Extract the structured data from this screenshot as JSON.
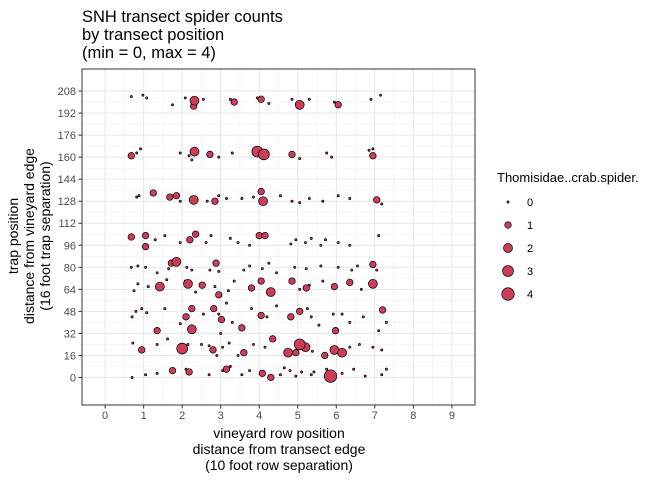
{
  "chart_data": {
    "type": "scatter",
    "title_lines": [
      "SNH transect spider counts",
      "by transect position",
      "(min = 0, max = 4)"
    ],
    "xlabel_lines": [
      "vineyard row position",
      "distance from transect edge",
      "(10 foot row separation)"
    ],
    "ylabel_lines": [
      "trap position",
      "distance from vineyard edge",
      "(16 foot trap separation)"
    ],
    "x_ticks": [
      "0",
      "1",
      "2",
      "3",
      "4",
      "5",
      "6",
      "7",
      "8",
      "9"
    ],
    "x_tick_values": [
      0,
      1,
      2,
      3,
      4,
      5,
      6,
      7,
      8,
      9
    ],
    "y_ticks": [
      "0",
      "16",
      "32",
      "48",
      "64",
      "80",
      "96",
      "112",
      "128",
      "144",
      "160",
      "176",
      "192",
      "208"
    ],
    "y_tick_values": [
      0,
      16,
      32,
      48,
      64,
      80,
      96,
      112,
      128,
      144,
      160,
      176,
      192,
      208
    ],
    "xlim": [
      -0.6,
      9.6
    ],
    "ylim": [
      -20,
      224
    ],
    "grid": true,
    "legend": {
      "title": "Thomisidae..crab.spider.",
      "position": "right",
      "entries": [
        {
          "label": "0",
          "value": 0
        },
        {
          "label": "1",
          "value": 1
        },
        {
          "label": "2",
          "value": 2
        },
        {
          "label": "3",
          "value": 3
        },
        {
          "label": "4",
          "value": 4
        }
      ]
    },
    "point_color": "#cc3d5a",
    "point_stroke": "#000000",
    "points": [
      [
        0.68,
        204,
        0
      ],
      [
        0.98,
        205,
        0
      ],
      [
        1.08,
        203,
        0
      ],
      [
        1.75,
        198,
        0
      ],
      [
        2.08,
        203,
        0
      ],
      [
        2.32,
        201,
        2
      ],
      [
        2.3,
        197,
        1
      ],
      [
        2.55,
        202,
        0
      ],
      [
        3.25,
        202,
        0
      ],
      [
        3.35,
        200,
        1
      ],
      [
        3.95,
        203,
        0
      ],
      [
        4.05,
        202,
        1
      ],
      [
        4.25,
        199,
        0
      ],
      [
        4.85,
        202,
        0
      ],
      [
        5.05,
        198,
        2
      ],
      [
        5.3,
        202,
        0
      ],
      [
        5.95,
        200,
        0
      ],
      [
        6.05,
        198,
        1
      ],
      [
        6.9,
        202,
        0
      ],
      [
        7.15,
        205,
        0
      ],
      [
        0.68,
        161,
        1
      ],
      [
        0.82,
        163,
        0
      ],
      [
        0.92,
        166,
        0
      ],
      [
        1.95,
        163,
        0
      ],
      [
        2.18,
        161,
        0
      ],
      [
        2.32,
        164,
        2
      ],
      [
        2.25,
        158,
        0
      ],
      [
        2.72,
        162,
        1
      ],
      [
        2.95,
        160,
        0
      ],
      [
        3.3,
        163,
        0
      ],
      [
        3.95,
        164,
        3
      ],
      [
        4.12,
        162,
        3
      ],
      [
        4.85,
        162,
        1
      ],
      [
        5.05,
        159,
        0
      ],
      [
        5.75,
        163,
        0
      ],
      [
        5.88,
        160,
        0
      ],
      [
        6.85,
        165,
        0
      ],
      [
        6.95,
        161,
        1
      ],
      [
        6.95,
        166,
        0
      ],
      [
        0.82,
        131,
        0
      ],
      [
        0.88,
        132,
        0
      ],
      [
        1.25,
        134,
        1
      ],
      [
        1.68,
        131,
        1
      ],
      [
        1.85,
        132,
        1
      ],
      [
        1.95,
        128,
        0
      ],
      [
        2.3,
        129,
        2
      ],
      [
        2.65,
        128,
        0
      ],
      [
        2.85,
        128,
        1
      ],
      [
        2.95,
        132,
        0
      ],
      [
        3.15,
        130,
        0
      ],
      [
        3.55,
        130,
        0
      ],
      [
        3.85,
        131,
        0
      ],
      [
        4.05,
        135,
        1
      ],
      [
        4.1,
        128,
        2
      ],
      [
        4.55,
        132,
        0
      ],
      [
        4.85,
        128,
        0
      ],
      [
        5.05,
        127,
        0
      ],
      [
        5.3,
        130,
        0
      ],
      [
        5.65,
        128,
        0
      ],
      [
        6.05,
        132,
        0
      ],
      [
        6.35,
        130,
        0
      ],
      [
        7.05,
        129,
        1
      ],
      [
        7.18,
        126,
        0
      ],
      [
        0.68,
        102,
        1
      ],
      [
        1.05,
        103,
        1
      ],
      [
        1.05,
        95,
        1
      ],
      [
        1.3,
        100,
        0
      ],
      [
        1.55,
        103,
        0
      ],
      [
        1.95,
        98,
        0
      ],
      [
        2.2,
        100,
        1
      ],
      [
        2.35,
        104,
        1
      ],
      [
        2.62,
        98,
        0
      ],
      [
        2.75,
        103,
        0
      ],
      [
        3.25,
        101,
        0
      ],
      [
        3.45,
        98,
        0
      ],
      [
        3.75,
        96,
        0
      ],
      [
        4.0,
        103,
        1
      ],
      [
        4.15,
        103,
        1
      ],
      [
        4.82,
        97,
        0
      ],
      [
        4.95,
        100,
        0
      ],
      [
        5.2,
        98,
        0
      ],
      [
        5.35,
        101,
        0
      ],
      [
        5.6,
        96,
        0
      ],
      [
        5.72,
        100,
        0
      ],
      [
        6.05,
        98,
        0
      ],
      [
        6.35,
        96,
        0
      ],
      [
        7.1,
        103,
        0
      ],
      [
        0.68,
        80,
        0
      ],
      [
        0.85,
        81,
        0
      ],
      [
        1.05,
        80,
        0
      ],
      [
        1.35,
        76,
        0
      ],
      [
        1.65,
        79,
        0
      ],
      [
        1.72,
        83,
        1
      ],
      [
        1.85,
        84,
        2
      ],
      [
        2.12,
        80,
        0
      ],
      [
        2.25,
        78,
        0
      ],
      [
        2.72,
        78,
        0
      ],
      [
        2.88,
        83,
        1
      ],
      [
        2.95,
        77,
        0
      ],
      [
        3.6,
        78,
        0
      ],
      [
        3.75,
        81,
        0
      ],
      [
        4.08,
        79,
        0
      ],
      [
        4.25,
        83,
        0
      ],
      [
        4.45,
        76,
        0
      ],
      [
        4.92,
        80,
        0
      ],
      [
        5.22,
        79,
        0
      ],
      [
        5.6,
        81,
        0
      ],
      [
        6.05,
        80,
        0
      ],
      [
        6.4,
        78,
        0
      ],
      [
        6.55,
        81,
        0
      ],
      [
        6.95,
        82,
        1
      ],
      [
        7.05,
        78,
        0
      ],
      [
        0.75,
        63,
        0
      ],
      [
        0.85,
        68,
        0
      ],
      [
        1.12,
        66,
        0
      ],
      [
        1.42,
        66,
        2
      ],
      [
        1.6,
        71,
        0
      ],
      [
        2.08,
        70,
        0
      ],
      [
        2.15,
        68,
        2
      ],
      [
        2.35,
        62,
        0
      ],
      [
        2.52,
        67,
        1
      ],
      [
        2.85,
        66,
        0
      ],
      [
        2.95,
        60,
        1
      ],
      [
        3.2,
        63,
        0
      ],
      [
        3.35,
        70,
        0
      ],
      [
        3.8,
        65,
        1
      ],
      [
        4.05,
        70,
        1
      ],
      [
        4.3,
        62,
        2
      ],
      [
        4.85,
        70,
        1
      ],
      [
        5.05,
        64,
        0
      ],
      [
        5.22,
        65,
        1
      ],
      [
        5.3,
        67,
        0
      ],
      [
        5.65,
        70,
        0
      ],
      [
        5.95,
        66,
        1
      ],
      [
        6.35,
        69,
        1
      ],
      [
        6.65,
        64,
        0
      ],
      [
        6.95,
        68,
        2
      ],
      [
        0.7,
        44,
        0
      ],
      [
        0.8,
        48,
        0
      ],
      [
        0.95,
        50,
        0
      ],
      [
        1.08,
        47,
        0
      ],
      [
        1.35,
        34,
        1
      ],
      [
        1.55,
        50,
        0
      ],
      [
        1.95,
        39,
        0
      ],
      [
        2.1,
        44,
        1
      ],
      [
        2.25,
        50,
        1
      ],
      [
        2.25,
        35,
        2
      ],
      [
        2.55,
        46,
        0
      ],
      [
        2.82,
        50,
        1
      ],
      [
        2.95,
        46,
        0
      ],
      [
        3.02,
        42,
        1
      ],
      [
        3.15,
        54,
        0
      ],
      [
        3.3,
        40,
        0
      ],
      [
        3.55,
        36,
        1
      ],
      [
        3.8,
        50,
        0
      ],
      [
        4.05,
        45,
        1
      ],
      [
        4.2,
        44,
        0
      ],
      [
        4.45,
        52,
        0
      ],
      [
        4.82,
        44,
        1
      ],
      [
        5.05,
        48,
        1
      ],
      [
        5.25,
        50,
        0
      ],
      [
        5.35,
        44,
        0
      ],
      [
        5.55,
        38,
        0
      ],
      [
        5.92,
        46,
        0
      ],
      [
        5.98,
        34,
        1
      ],
      [
        6.15,
        46,
        0
      ],
      [
        6.35,
        40,
        0
      ],
      [
        6.7,
        44,
        0
      ],
      [
        7.1,
        34,
        0
      ],
      [
        7.2,
        49,
        1
      ],
      [
        7.3,
        40,
        0
      ],
      [
        3.0,
        32,
        0
      ],
      [
        0.72,
        25,
        0
      ],
      [
        0.95,
        20,
        1
      ],
      [
        1.35,
        24,
        0
      ],
      [
        1.62,
        28,
        0
      ],
      [
        2.0,
        21,
        3
      ],
      [
        2.15,
        24,
        0
      ],
      [
        2.5,
        24,
        0
      ],
      [
        2.7,
        23,
        0
      ],
      [
        2.8,
        20,
        1
      ],
      [
        2.9,
        16,
        0
      ],
      [
        3.05,
        22,
        0
      ],
      [
        3.22,
        25,
        0
      ],
      [
        3.45,
        16,
        0
      ],
      [
        3.6,
        18,
        1
      ],
      [
        3.85,
        24,
        0
      ],
      [
        4.15,
        22,
        0
      ],
      [
        4.35,
        28,
        1
      ],
      [
        4.75,
        18,
        2
      ],
      [
        4.95,
        18,
        1
      ],
      [
        5.05,
        24,
        3
      ],
      [
        5.2,
        22,
        2
      ],
      [
        5.38,
        19,
        0
      ],
      [
        5.7,
        16,
        1
      ],
      [
        5.95,
        20,
        2
      ],
      [
        6.15,
        18,
        2
      ],
      [
        6.35,
        22,
        0
      ],
      [
        6.6,
        24,
        0
      ],
      [
        6.95,
        22,
        0
      ],
      [
        7.18,
        20,
        0
      ],
      [
        0.7,
        0,
        0
      ],
      [
        1.05,
        2,
        0
      ],
      [
        1.35,
        3,
        0
      ],
      [
        1.75,
        5,
        1
      ],
      [
        2.1,
        6,
        0
      ],
      [
        2.18,
        4,
        1
      ],
      [
        2.7,
        2,
        0
      ],
      [
        3.05,
        5,
        0
      ],
      [
        3.15,
        6,
        1
      ],
      [
        3.25,
        8,
        0
      ],
      [
        3.55,
        2,
        0
      ],
      [
        3.75,
        5,
        0
      ],
      [
        4.08,
        3,
        1
      ],
      [
        4.3,
        0,
        1
      ],
      [
        4.55,
        2,
        0
      ],
      [
        4.65,
        7,
        0
      ],
      [
        4.8,
        5,
        0
      ],
      [
        4.95,
        1,
        0
      ],
      [
        5.1,
        4,
        0
      ],
      [
        5.35,
        2,
        0
      ],
      [
        5.42,
        4,
        0
      ],
      [
        5.75,
        6,
        0
      ],
      [
        5.85,
        1,
        4
      ],
      [
        5.88,
        4,
        0
      ],
      [
        6.15,
        3,
        0
      ],
      [
        6.45,
        6,
        0
      ],
      [
        6.75,
        1,
        0
      ],
      [
        7.18,
        2,
        0
      ],
      [
        7.3,
        6,
        0
      ]
    ]
  }
}
